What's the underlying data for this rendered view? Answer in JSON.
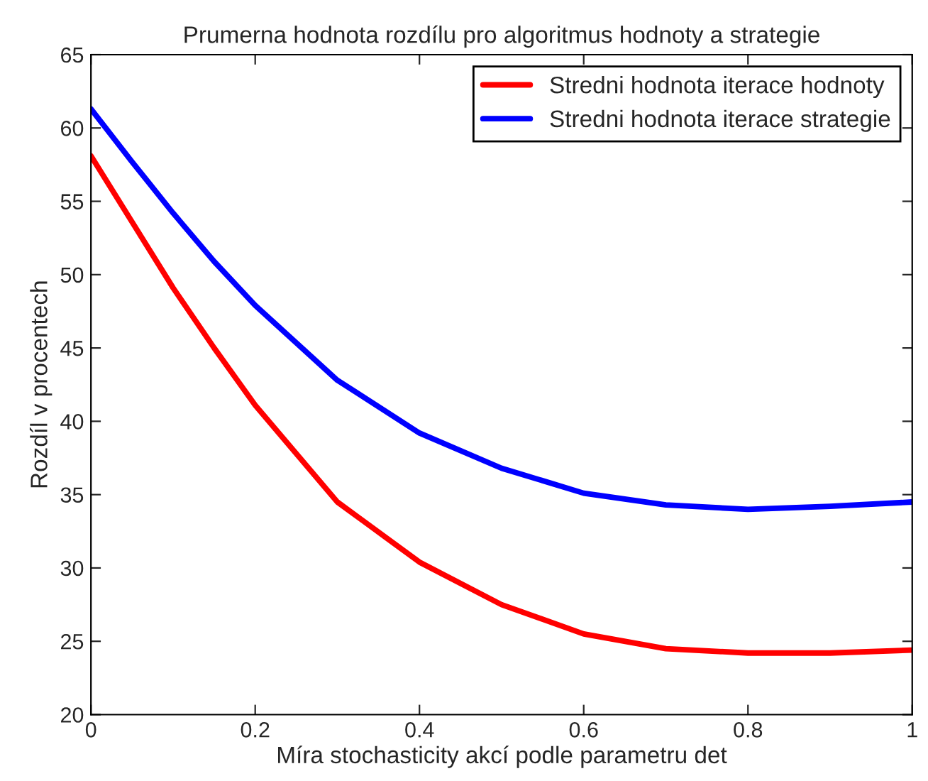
{
  "chart_data": {
    "type": "line",
    "title": "Prumerna hodnota rozdílu pro algoritmus hodnoty a strategie",
    "xlabel": "Míra stochasticity akcí podle parametru det",
    "ylabel": "Rozdíl v procentech",
    "x": [
      0,
      0.05,
      0.1,
      0.15,
      0.2,
      0.3,
      0.4,
      0.5,
      0.6,
      0.7,
      0.8,
      0.9,
      1
    ],
    "series": [
      {
        "name": "Stredni hodnota iterace hodnoty",
        "color": "#ff0000",
        "values": [
          58.1,
          53.6,
          49.1,
          45.0,
          41.1,
          34.5,
          30.4,
          27.5,
          25.5,
          24.5,
          24.2,
          24.2,
          24.4
        ]
      },
      {
        "name": "Stredni hodnota iterace strategie",
        "color": "#0000ff",
        "values": [
          61.3,
          57.7,
          54.2,
          50.9,
          47.9,
          42.8,
          39.2,
          36.8,
          35.1,
          34.3,
          34.0,
          34.2,
          34.5
        ]
      }
    ],
    "xlim": [
      0,
      1
    ],
    "ylim": [
      20,
      65
    ],
    "xticks": [
      0,
      0.2,
      0.4,
      0.6,
      0.8,
      1
    ],
    "yticks": [
      20,
      25,
      30,
      35,
      40,
      45,
      50,
      55,
      60,
      65
    ],
    "grid": false,
    "legend": "top right",
    "marker": "none",
    "line_style": "solid"
  }
}
